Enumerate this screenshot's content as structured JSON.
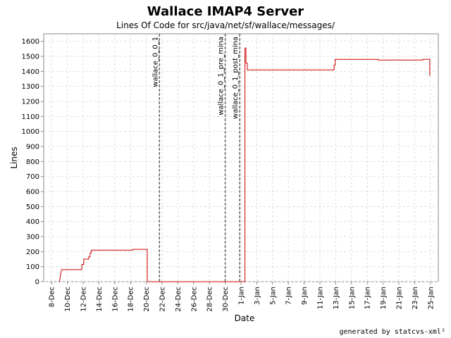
{
  "chart_data": {
    "type": "line",
    "title": "Wallace IMAP4 Server",
    "subtitle": "Lines Of Code for src/java/net/sf/wallace/messages/",
    "xlabel": "Date",
    "ylabel": "Lines",
    "x_axis_type": "date",
    "xlim": [
      "2002-12-07",
      "2003-01-26"
    ],
    "ylim": [
      0,
      1650
    ],
    "y_ticks": [
      0,
      100,
      200,
      300,
      400,
      500,
      600,
      700,
      800,
      900,
      1000,
      1100,
      1200,
      1300,
      1400,
      1500,
      1600
    ],
    "x_ticks": [
      {
        "date": "2002-12-08",
        "label": "8-Dec"
      },
      {
        "date": "2002-12-10",
        "label": "10-Dec"
      },
      {
        "date": "2002-12-12",
        "label": "12-Dec"
      },
      {
        "date": "2002-12-14",
        "label": "14-Dec"
      },
      {
        "date": "2002-12-16",
        "label": "16-Dec"
      },
      {
        "date": "2002-12-18",
        "label": "18-Dec"
      },
      {
        "date": "2002-12-20",
        "label": "20-Dec"
      },
      {
        "date": "2002-12-22",
        "label": "22-Dec"
      },
      {
        "date": "2002-12-24",
        "label": "24-Dec"
      },
      {
        "date": "2002-12-26",
        "label": "26-Dec"
      },
      {
        "date": "2002-12-28",
        "label": "28-Dec"
      },
      {
        "date": "2002-12-30",
        "label": "30-Dec"
      },
      {
        "date": "2003-01-01",
        "label": "1-Jan"
      },
      {
        "date": "2003-01-03",
        "label": "3-Jan"
      },
      {
        "date": "2003-01-05",
        "label": "5-Jan"
      },
      {
        "date": "2003-01-07",
        "label": "7-Jan"
      },
      {
        "date": "2003-01-09",
        "label": "9-Jan"
      },
      {
        "date": "2003-01-11",
        "label": "11-Jan"
      },
      {
        "date": "2003-01-13",
        "label": "13-Jan"
      },
      {
        "date": "2003-01-15",
        "label": "15-Jan"
      },
      {
        "date": "2003-01-17",
        "label": "17-Jan"
      },
      {
        "date": "2003-01-19",
        "label": "19-Jan"
      },
      {
        "date": "2003-01-21",
        "label": "21-Jan"
      },
      {
        "date": "2003-01-23",
        "label": "23-Jan"
      },
      {
        "date": "2003-01-25",
        "label": "25-Jan"
      }
    ],
    "grid": true,
    "line_color": "#cc0000",
    "series": [
      {
        "step": true,
        "points": [
          {
            "x": "2002-12-09 00:00",
            "y": 0
          },
          {
            "x": "2002-12-09 06:00",
            "y": 80
          },
          {
            "x": "2002-12-11 20:00",
            "y": 80
          },
          {
            "x": "2002-12-11 20:00",
            "y": 115
          },
          {
            "x": "2002-12-12 02:00",
            "y": 115
          },
          {
            "x": "2002-12-12 02:00",
            "y": 150
          },
          {
            "x": "2002-12-12 17:00",
            "y": 150
          },
          {
            "x": "2002-12-12 17:00",
            "y": 165
          },
          {
            "x": "2002-12-12 21:00",
            "y": 165
          },
          {
            "x": "2002-12-12 21:00",
            "y": 190
          },
          {
            "x": "2002-12-13 00:00",
            "y": 190
          },
          {
            "x": "2002-12-13 00:00",
            "y": 205
          },
          {
            "x": "2002-12-13 02:00",
            "y": 205
          },
          {
            "x": "2002-12-13 02:00",
            "y": 210
          },
          {
            "x": "2002-12-18 06:00",
            "y": 210
          },
          {
            "x": "2002-12-18 06:00",
            "y": 215
          },
          {
            "x": "2002-12-20 03:00",
            "y": 215
          },
          {
            "x": "2002-12-20 03:00",
            "y": 0
          },
          {
            "x": "2003-01-01 12:00",
            "y": 0
          },
          {
            "x": "2003-01-01 12:00",
            "y": 1555
          },
          {
            "x": "2003-01-01 15:00",
            "y": 1555
          },
          {
            "x": "2003-01-01 15:00",
            "y": 1455
          },
          {
            "x": "2003-01-01 19:00",
            "y": 1455
          },
          {
            "x": "2003-01-01 19:00",
            "y": 1410
          },
          {
            "x": "2003-01-12 19:00",
            "y": 1410
          },
          {
            "x": "2003-01-12 19:00",
            "y": 1440
          },
          {
            "x": "2003-01-12 22:00",
            "y": 1440
          },
          {
            "x": "2003-01-12 22:00",
            "y": 1480
          },
          {
            "x": "2003-01-18 09:00",
            "y": 1480
          },
          {
            "x": "2003-01-18 09:00",
            "y": 1475
          },
          {
            "x": "2003-01-24 00:00",
            "y": 1475
          },
          {
            "x": "2003-01-24 00:00",
            "y": 1480
          },
          {
            "x": "2003-01-24 22:00",
            "y": 1480
          },
          {
            "x": "2003-01-24 22:00",
            "y": 1370
          }
        ]
      }
    ],
    "markers": [
      {
        "date": "2002-12-21 16:00",
        "label": "wallace_0_0_1"
      },
      {
        "date": "2002-12-30 00:00",
        "label": "wallace_0_1_pre_mina"
      },
      {
        "date": "2002-12-31 20:00",
        "label": "wallace_0_1_post_mina"
      }
    ],
    "footer": "generated by statcvs-xml²"
  }
}
